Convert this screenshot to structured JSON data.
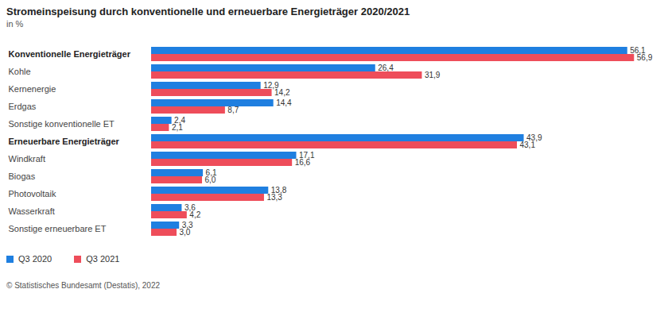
{
  "chart_data": {
    "type": "bar",
    "orientation": "horizontal",
    "title": "Stromeinspeisung durch konventionelle und erneuerbare Energieträger 2020/2021",
    "subtitle": "in %",
    "categories": [
      "Konventionelle Energieträger",
      "Kohle",
      "Kernenergie",
      "Erdgas",
      "Sonstige konventionelle ET",
      "Erneuerbare Energieträger",
      "Windkraft",
      "Biogas",
      "Photovoltaik",
      "Wasserkraft",
      "Sonstige erneuerbare ET"
    ],
    "series": [
      {
        "name": "Q3 2020",
        "color": "#1f7fe0",
        "values": [
          56.1,
          26.4,
          12.9,
          14.4,
          2.4,
          43.9,
          17.1,
          6.1,
          13.8,
          3.6,
          3.3
        ],
        "value_labels": [
          "56,1",
          "26,4",
          "12,9",
          "14,4",
          "2,4",
          "43,9",
          "17,1",
          "6,1",
          "13,8",
          "3,6",
          "3,3"
        ]
      },
      {
        "name": "Q3 2021",
        "color": "#ee4d5a",
        "values": [
          56.9,
          31.9,
          14.2,
          8.7,
          2.1,
          43.1,
          16.6,
          6.0,
          13.3,
          4.2,
          3.0
        ],
        "value_labels": [
          "56,9",
          "31,9",
          "14,2",
          "8,7",
          "2,1",
          "43,1",
          "16,6",
          "6,0",
          "13,3",
          "4,2",
          "3,0"
        ]
      }
    ],
    "xlim": [
      0,
      58
    ],
    "tick_labels": false,
    "data_labels": true,
    "grid": false,
    "legend": "bottom-left",
    "source": "© Statistisches Bundesamt (Destatis), 2022"
  }
}
